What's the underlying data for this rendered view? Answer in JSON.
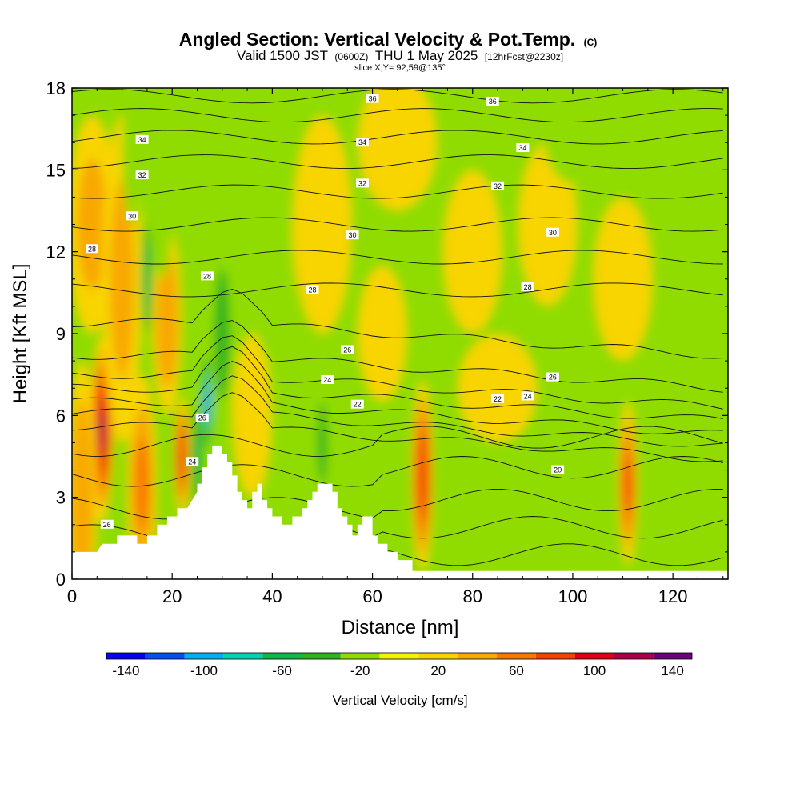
{
  "title": {
    "main": "Angled Section: Vertical Velocity & Pot.Temp.",
    "mark": "(C)",
    "valid_prefix": "Valid 1500 JST",
    "valid_utc": "(0600Z)",
    "valid_date": "THU 1 May 2025",
    "forecast": "[12hrFcst@2230z]",
    "slice": "slice X,Y= 92,59@135°"
  },
  "chart_data": {
    "type": "heatmap",
    "xlabel": "Distance [nm]",
    "ylabel": "Height [Kft MSL]",
    "xlim": [
      0,
      131
    ],
    "ylim": [
      0,
      18
    ],
    "x_ticks": [
      0,
      20,
      40,
      60,
      80,
      100,
      120
    ],
    "y_ticks": [
      0,
      3,
      6,
      9,
      12,
      15,
      18
    ],
    "terrain_kft": [
      [
        0,
        1.0
      ],
      [
        5,
        1.0
      ],
      [
        6,
        1.3
      ],
      [
        9,
        1.3
      ],
      [
        9,
        1.6
      ],
      [
        13,
        1.6
      ],
      [
        13,
        1.3
      ],
      [
        15,
        1.3
      ],
      [
        15,
        1.6
      ],
      [
        17,
        1.6
      ],
      [
        17,
        2.0
      ],
      [
        19,
        2.0
      ],
      [
        19,
        2.3
      ],
      [
        21,
        2.3
      ],
      [
        21,
        2.6
      ],
      [
        23,
        2.6
      ],
      [
        24,
        2.9
      ],
      [
        25,
        3.2
      ],
      [
        25,
        3.5
      ],
      [
        26,
        3.5
      ],
      [
        26,
        4.1
      ],
      [
        27,
        4.1
      ],
      [
        27,
        4.6
      ],
      [
        28,
        4.6
      ],
      [
        28,
        4.9
      ],
      [
        30,
        4.9
      ],
      [
        30,
        4.6
      ],
      [
        31,
        4.6
      ],
      [
        31,
        4.3
      ],
      [
        32,
        4.3
      ],
      [
        32,
        3.8
      ],
      [
        33,
        3.8
      ],
      [
        33,
        3.2
      ],
      [
        34,
        3.2
      ],
      [
        34,
        2.9
      ],
      [
        35,
        2.9
      ],
      [
        35,
        2.6
      ],
      [
        36,
        2.6
      ],
      [
        36,
        3.2
      ],
      [
        37,
        3.2
      ],
      [
        37,
        3.5
      ],
      [
        38,
        3.5
      ],
      [
        38,
        2.9
      ],
      [
        39,
        2.9
      ],
      [
        39,
        2.6
      ],
      [
        40,
        2.6
      ],
      [
        40,
        2.3
      ],
      [
        42,
        2.3
      ],
      [
        42,
        2.0
      ],
      [
        44,
        2.0
      ],
      [
        44,
        2.3
      ],
      [
        46,
        2.3
      ],
      [
        46,
        2.6
      ],
      [
        47,
        2.6
      ],
      [
        47,
        2.9
      ],
      [
        48,
        2.9
      ],
      [
        48,
        3.2
      ],
      [
        49,
        3.2
      ],
      [
        49,
        3.5
      ],
      [
        52,
        3.5
      ],
      [
        52,
        3.2
      ],
      [
        53,
        3.2
      ],
      [
        53,
        2.6
      ],
      [
        54,
        2.6
      ],
      [
        54,
        2.3
      ],
      [
        55,
        2.3
      ],
      [
        55,
        2.0
      ],
      [
        56,
        2.0
      ],
      [
        56,
        1.6
      ],
      [
        57,
        1.6
      ],
      [
        57,
        2.0
      ],
      [
        58,
        2.0
      ],
      [
        58,
        2.3
      ],
      [
        60,
        2.3
      ],
      [
        60,
        1.6
      ],
      [
        61,
        1.6
      ],
      [
        61,
        1.3
      ],
      [
        63,
        1.3
      ],
      [
        63,
        1.0
      ],
      [
        65,
        1.0
      ],
      [
        65,
        0.7
      ],
      [
        68,
        0.7
      ],
      [
        68,
        0.3
      ],
      [
        131,
        0.3
      ]
    ],
    "colorbar": {
      "label": "Vertical Velocity [cm/s]",
      "boundaries": [
        -150,
        -130,
        -110,
        -90,
        -70,
        -50,
        -30,
        -10,
        10,
        30,
        50,
        70,
        90,
        110,
        130,
        150
      ],
      "tick_values": [
        -140,
        -100,
        -60,
        -20,
        20,
        60,
        100,
        140
      ],
      "tick_labels": [
        "-140",
        "-100",
        "-60",
        "-20",
        "20",
        "60",
        "100",
        "140"
      ],
      "colors": [
        "#0a00f0",
        "#0050ee",
        "#00b0f0",
        "#00d4b4",
        "#10b84c",
        "#2eb41c",
        "#90dc00",
        "#f4f400",
        "#f8d400",
        "#f8a800",
        "#f87800",
        "#f44400",
        "#e00018",
        "#aa0048",
        "#6a007a"
      ]
    },
    "w_field": [
      {
        "x": 6,
        "y": 5.5,
        "rx": 2.4,
        "ry": 3.4,
        "v": 115
      },
      {
        "x": 2,
        "y": 3.0,
        "rx": 3,
        "ry": 5,
        "v": 45
      },
      {
        "x": 14,
        "y": 3.5,
        "rx": 3,
        "ry": 4,
        "v": 55
      },
      {
        "x": 22,
        "y": 4.5,
        "rx": 1.6,
        "ry": 2.2,
        "v": 85
      },
      {
        "x": 19,
        "y": 9.5,
        "rx": 3,
        "ry": 3.5,
        "v": 45
      },
      {
        "x": 4,
        "y": 13,
        "rx": 5,
        "ry": 4,
        "v": 30
      },
      {
        "x": 10,
        "y": 11,
        "rx": 4,
        "ry": 6,
        "v": 30
      },
      {
        "x": 12,
        "y": 16,
        "rx": 2,
        "ry": 3,
        "v": -30
      },
      {
        "x": 18,
        "y": 15,
        "rx": 2.5,
        "ry": 4,
        "v": -30
      },
      {
        "x": 15,
        "y": 11,
        "rx": 1.2,
        "ry": 2.5,
        "v": -70
      },
      {
        "x": 27,
        "y": 6.5,
        "rx": 1.2,
        "ry": 2.0,
        "v": -110
      },
      {
        "x": 25,
        "y": 4.5,
        "rx": 1.5,
        "ry": 2.5,
        "v": -55
      },
      {
        "x": 30,
        "y": 9,
        "rx": 2.5,
        "ry": 4,
        "v": -35
      },
      {
        "x": 36,
        "y": 6,
        "rx": 4,
        "ry": 3,
        "v": 25
      },
      {
        "x": 50,
        "y": 5,
        "rx": 1.5,
        "ry": 2.5,
        "v": -40
      },
      {
        "x": 45,
        "y": 4,
        "rx": 2,
        "ry": 2.5,
        "v": -30
      },
      {
        "x": 70,
        "y": 3.8,
        "rx": 2.2,
        "ry": 3.5,
        "v": 85
      },
      {
        "x": 111,
        "y": 3.5,
        "rx": 2,
        "ry": 3,
        "v": 75
      },
      {
        "x": 78,
        "y": 3.5,
        "rx": 2,
        "ry": 3,
        "v": -30
      },
      {
        "x": 103,
        "y": 3.5,
        "rx": 1.5,
        "ry": 3,
        "v": -25
      },
      {
        "x": 125,
        "y": 3,
        "rx": 8,
        "ry": 4,
        "v": -15
      },
      {
        "x": 50,
        "y": 13,
        "rx": 6,
        "ry": 4,
        "v": 25
      },
      {
        "x": 65,
        "y": 16,
        "rx": 8,
        "ry": 2.5,
        "v": 25
      },
      {
        "x": 80,
        "y": 12,
        "rx": 6,
        "ry": 3,
        "v": 25
      },
      {
        "x": 95,
        "y": 13,
        "rx": 6,
        "ry": 3,
        "v": 25
      },
      {
        "x": 110,
        "y": 11,
        "rx": 6,
        "ry": 3,
        "v": 25
      },
      {
        "x": 85,
        "y": 7,
        "rx": 8,
        "ry": 2,
        "v": 20
      },
      {
        "x": 62,
        "y": 9,
        "rx": 5,
        "ry": 2.5,
        "v": 25
      },
      {
        "x": 120,
        "y": 14,
        "rx": 4,
        "ry": 3,
        "v": -20
      },
      {
        "x": 100,
        "y": 16.5,
        "rx": 6,
        "ry": 2,
        "v": -20
      },
      {
        "x": 40,
        "y": 11,
        "rx": 4,
        "ry": 3,
        "v": -15
      }
    ],
    "theta_labels": [
      {
        "text": "36",
        "x": 60,
        "y": 17.6
      },
      {
        "text": "36",
        "x": 84,
        "y": 17.5
      },
      {
        "text": "34",
        "x": 14,
        "y": 16.1
      },
      {
        "text": "34",
        "x": 58,
        "y": 16.0
      },
      {
        "text": "34",
        "x": 90,
        "y": 15.8
      },
      {
        "text": "32",
        "x": 14,
        "y": 14.8
      },
      {
        "text": "32",
        "x": 58,
        "y": 14.5
      },
      {
        "text": "32",
        "x": 85,
        "y": 14.4
      },
      {
        "text": "30",
        "x": 12,
        "y": 13.3
      },
      {
        "text": "30",
        "x": 56,
        "y": 12.6
      },
      {
        "text": "30",
        "x": 96,
        "y": 12.7
      },
      {
        "text": "28",
        "x": 4,
        "y": 12.1
      },
      {
        "text": "28",
        "x": 27,
        "y": 11.1
      },
      {
        "text": "28",
        "x": 48,
        "y": 10.6
      },
      {
        "text": "28",
        "x": 91,
        "y": 10.7
      },
      {
        "text": "26",
        "x": 55,
        "y": 8.4
      },
      {
        "text": "26",
        "x": 96,
        "y": 7.4
      },
      {
        "text": "26",
        "x": 26,
        "y": 5.9
      },
      {
        "text": "24",
        "x": 51,
        "y": 7.3
      },
      {
        "text": "24",
        "x": 91,
        "y": 6.7
      },
      {
        "text": "24",
        "x": 24,
        "y": 4.3
      },
      {
        "text": "22",
        "x": 57,
        "y": 6.4
      },
      {
        "text": "22",
        "x": 85,
        "y": 6.6
      },
      {
        "text": "20",
        "x": 97,
        "y": 4.0
      },
      {
        "text": "26",
        "x": 7,
        "y": 2.0
      }
    ]
  }
}
